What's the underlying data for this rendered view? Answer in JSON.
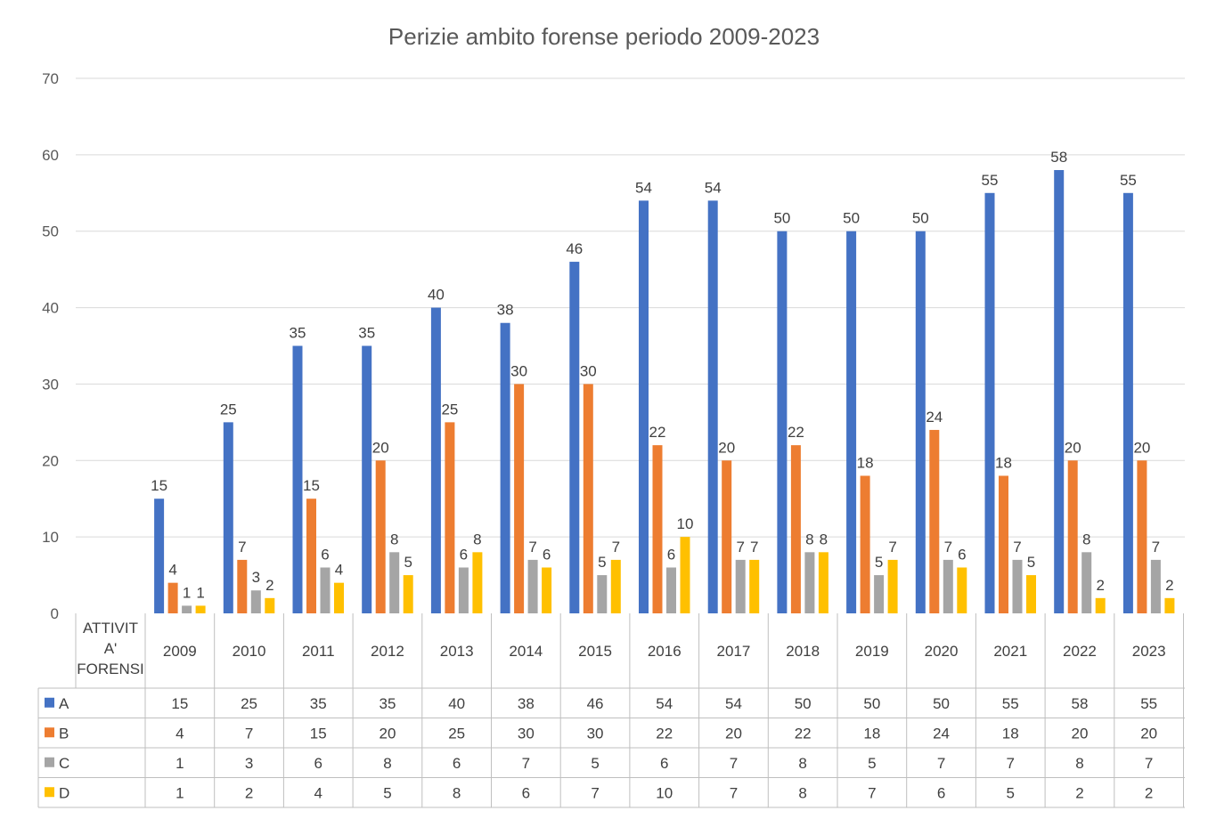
{
  "chart_data": {
    "type": "bar",
    "title": "Perizie ambito forense periodo  2009-2023",
    "category_header": "ATTIVITA' FORENSI",
    "categories": [
      "2009",
      "2010",
      "2011",
      "2012",
      "2013",
      "2014",
      "2015",
      "2016",
      "2017",
      "2018",
      "2019",
      "2020",
      "2021",
      "2022",
      "2023"
    ],
    "series": [
      {
        "name": "A",
        "color": "#4472c4",
        "values": [
          15,
          25,
          35,
          35,
          40,
          38,
          46,
          54,
          54,
          50,
          50,
          50,
          55,
          58,
          55
        ]
      },
      {
        "name": "B",
        "color": "#ed7d31",
        "values": [
          4,
          7,
          15,
          20,
          25,
          30,
          30,
          22,
          20,
          22,
          18,
          24,
          18,
          20,
          20
        ]
      },
      {
        "name": "C",
        "color": "#a5a5a5",
        "values": [
          1,
          3,
          6,
          8,
          6,
          7,
          5,
          6,
          7,
          8,
          5,
          7,
          7,
          8,
          7
        ]
      },
      {
        "name": "D",
        "color": "#ffc000",
        "values": [
          1,
          2,
          4,
          5,
          8,
          6,
          7,
          10,
          7,
          8,
          7,
          6,
          5,
          2,
          2
        ]
      }
    ],
    "ylim": [
      0,
      70
    ],
    "yticks": [
      0,
      10,
      20,
      30,
      40,
      50,
      60,
      70
    ],
    "grid": true,
    "data_table": true
  }
}
